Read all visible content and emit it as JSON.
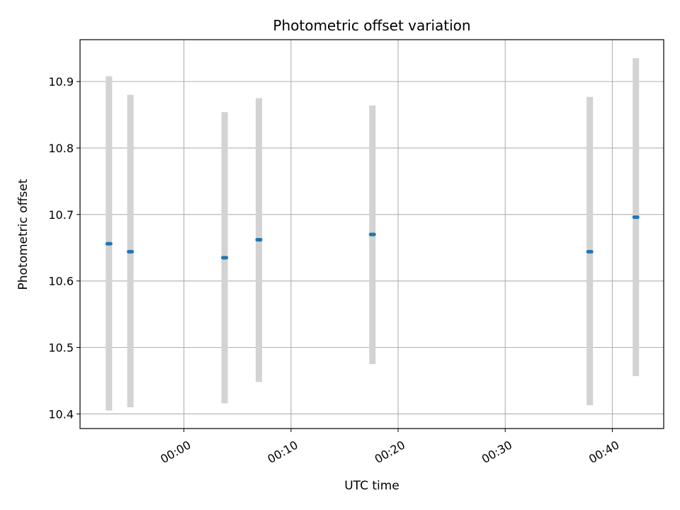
{
  "chart_data": {
    "type": "scatter",
    "title": "Photometric offset variation",
    "xlabel": "UTC time",
    "ylabel": "Photometric offset",
    "x_unit": "minutes",
    "x_ticks": [
      {
        "value": 0,
        "label": "00:00"
      },
      {
        "value": 10,
        "label": "00:10"
      },
      {
        "value": 20,
        "label": "00:20"
      },
      {
        "value": 30,
        "label": "00:30"
      },
      {
        "value": 40,
        "label": "00:40"
      }
    ],
    "y_ticks": [
      10.4,
      10.5,
      10.6,
      10.7,
      10.8,
      10.9
    ],
    "xlim": [
      -9.7,
      44.8
    ],
    "ylim": [
      10.378,
      10.963
    ],
    "grid": true,
    "error_bar_color": "#d3d3d3",
    "marker_color": "#1f77b4",
    "points": [
      {
        "x": -7.0,
        "y": 10.656,
        "y_low": 10.405,
        "y_high": 10.908
      },
      {
        "x": -5.0,
        "y": 10.644,
        "y_low": 10.41,
        "y_high": 10.88
      },
      {
        "x": 3.8,
        "y": 10.635,
        "y_low": 10.416,
        "y_high": 10.854
      },
      {
        "x": 7.0,
        "y": 10.662,
        "y_low": 10.448,
        "y_high": 10.875
      },
      {
        "x": 17.6,
        "y": 10.67,
        "y_low": 10.475,
        "y_high": 10.864
      },
      {
        "x": 37.9,
        "y": 10.644,
        "y_low": 10.413,
        "y_high": 10.877
      },
      {
        "x": 42.2,
        "y": 10.696,
        "y_low": 10.457,
        "y_high": 10.935
      }
    ]
  }
}
